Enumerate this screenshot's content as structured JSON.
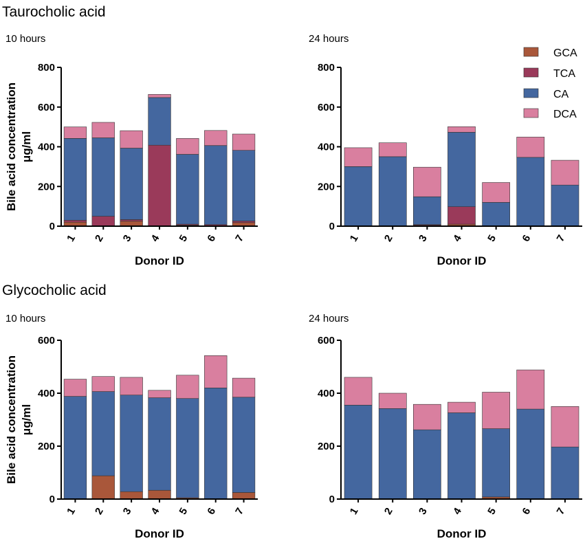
{
  "colors": {
    "GCA": "#a9573a",
    "TCA": "#9a3a5a",
    "CA": "#44679f",
    "DCA": "#d97f9f",
    "minor": "#3f8f5a"
  },
  "sections": [
    {
      "title": "Taurocholic acid"
    },
    {
      "title": "Glycocholic acid"
    }
  ],
  "legend": [
    {
      "key": "GCA",
      "label": "GCA"
    },
    {
      "key": "TCA",
      "label": "TCA"
    },
    {
      "key": "CA",
      "label": "CA"
    },
    {
      "key": "DCA",
      "label": "DCA"
    }
  ],
  "chart_data": [
    {
      "type": "bar",
      "stacked": true,
      "section": "Taurocholic acid",
      "title": "10 hours",
      "xlabel": "Donor ID",
      "ylabel": "Bile acid concentration μg/ml",
      "ylim": [
        0,
        800
      ],
      "yticks": [
        0,
        200,
        400,
        600,
        800
      ],
      "categories": [
        "1",
        "2",
        "3",
        "4",
        "5",
        "6",
        "7"
      ],
      "series": [
        {
          "name": "GCA",
          "values": [
            20,
            0,
            25,
            0,
            5,
            3,
            18
          ]
        },
        {
          "name": "TCA",
          "values": [
            10,
            50,
            8,
            408,
            5,
            5,
            8
          ]
        },
        {
          "name": "CA",
          "values": [
            412,
            395,
            360,
            240,
            352,
            398,
            356
          ]
        },
        {
          "name": "DCA",
          "values": [
            58,
            78,
            88,
            16,
            80,
            76,
            82
          ]
        }
      ]
    },
    {
      "type": "bar",
      "stacked": true,
      "section": "Taurocholic acid",
      "title": "24 hours",
      "xlabel": "Donor ID",
      "ylabel": "",
      "ylim": [
        0,
        800
      ],
      "yticks": [
        0,
        200,
        400,
        600,
        800
      ],
      "categories": [
        "1",
        "2",
        "3",
        "4",
        "5",
        "6",
        "7"
      ],
      "series": [
        {
          "name": "GCA",
          "values": [
            0,
            0,
            5,
            10,
            0,
            0,
            0
          ]
        },
        {
          "name": "TCA",
          "values": [
            0,
            0,
            3,
            88,
            0,
            0,
            0
          ]
        },
        {
          "name": "CA",
          "values": [
            300,
            350,
            140,
            375,
            120,
            347,
            207
          ]
        },
        {
          "name": "DCA",
          "values": [
            95,
            70,
            149,
            28,
            100,
            102,
            125
          ]
        }
      ]
    },
    {
      "type": "bar",
      "stacked": true,
      "section": "Glycocholic acid",
      "title": "10 hours",
      "xlabel": "Donor ID",
      "ylabel": "Bile acid concentration μg/ml",
      "ylim": [
        0,
        600
      ],
      "yticks": [
        0,
        200,
        400,
        600
      ],
      "categories": [
        "1",
        "2",
        "3",
        "4",
        "5",
        "6",
        "7"
      ],
      "series": [
        {
          "name": "GCA",
          "values": [
            0,
            88,
            28,
            33,
            5,
            0,
            25
          ]
        },
        {
          "name": "TCA",
          "values": [
            0,
            0,
            0,
            0,
            0,
            0,
            0
          ]
        },
        {
          "name": "CA",
          "values": [
            388,
            318,
            365,
            350,
            375,
            420,
            360
          ]
        },
        {
          "name": "DCA",
          "values": [
            65,
            57,
            67,
            28,
            88,
            122,
            72
          ]
        }
      ]
    },
    {
      "type": "bar",
      "stacked": true,
      "section": "Glycocholic acid",
      "title": "24 hours",
      "xlabel": "Donor ID",
      "ylabel": "",
      "ylim": [
        0,
        600
      ],
      "yticks": [
        0,
        200,
        400,
        600
      ],
      "categories": [
        "1",
        "2",
        "3",
        "4",
        "5",
        "6",
        "7"
      ],
      "series": [
        {
          "name": "GCA",
          "values": [
            0,
            0,
            0,
            0,
            8,
            0,
            0
          ]
        },
        {
          "name": "TCA",
          "values": [
            0,
            0,
            0,
            0,
            0,
            0,
            0
          ]
        },
        {
          "name": "CA",
          "values": [
            355,
            342,
            262,
            326,
            258,
            340,
            197
          ]
        },
        {
          "name": "DCA",
          "values": [
            105,
            58,
            96,
            40,
            138,
            148,
            153
          ]
        }
      ]
    }
  ]
}
